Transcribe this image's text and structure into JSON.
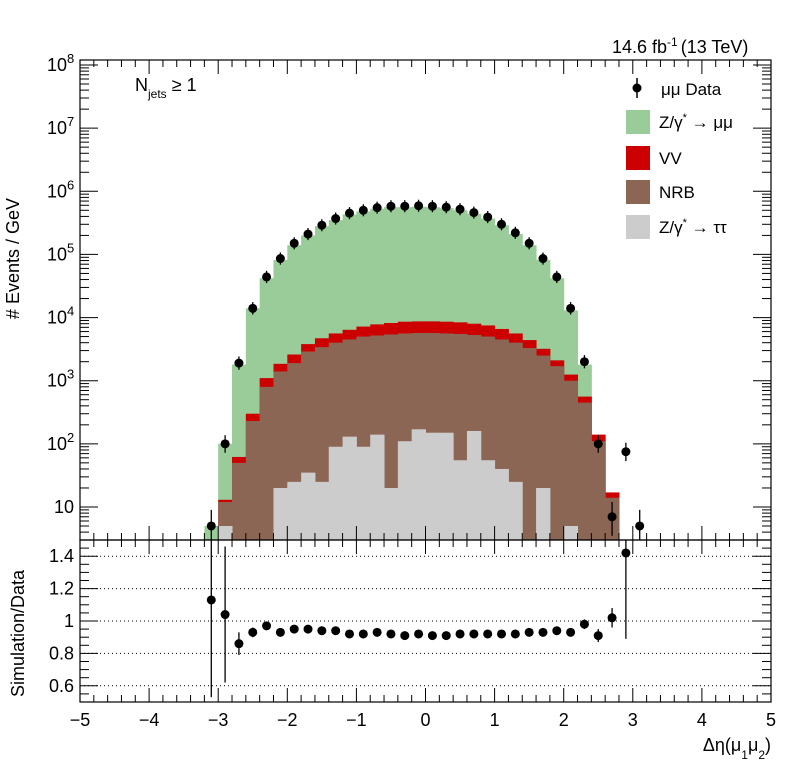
{
  "header": {
    "lumi_value": "14.6 fb",
    "lumi_exp": "-1",
    "lumi_energy": "(13 TeV)",
    "selection_main": "N",
    "selection_sub": "jets",
    "selection_rest": " ≥ 1"
  },
  "legend": {
    "data": "μμ Data",
    "zmm_a": "Z/γ",
    "zmm_star": "*",
    "zmm_b": " → μμ",
    "vv": "VV",
    "nrb": "NRB",
    "ztt_a": "Z/γ",
    "ztt_star": "*",
    "ztt_b": " → ττ"
  },
  "axes": {
    "ylabel_main": "# Events / GeV",
    "ylabel_ratio": "Simulation/Data",
    "xlabel_main": "Δη(μ",
    "xlabel_sub1": "1",
    "xlabel_mid": "μ",
    "xlabel_sub2": "2",
    "xlabel_end": ")"
  },
  "chart_data": [
    {
      "type": "bar",
      "title": "",
      "xlabel": "Δη(μ1μ2)",
      "ylabel": "# Events / GeV",
      "xlim": [
        -5,
        5
      ],
      "ylim": [
        3,
        120000000
      ],
      "yscale": "log",
      "stacked": true,
      "x_edges_step": 0.2,
      "x_first_edge": -3.2,
      "y_tick_labels": [
        "10",
        "10^2",
        "10^3",
        "10^4",
        "10^5",
        "10^6",
        "10^7",
        "10^8"
      ],
      "x_tick_labels": [
        "−5",
        "−4",
        "−3",
        "−2",
        "−1",
        "0",
        "1",
        "2",
        "3",
        "4",
        "5"
      ],
      "colors": {
        "zmm": "#99cc99",
        "vv": "#cc0000",
        "nrb": "#8c6654",
        "ztt": "#cccccc",
        "data": "#000000"
      },
      "stack_tops": {
        "ztt": [
          1,
          5,
          1,
          1,
          1,
          20,
          25,
          35,
          25,
          90,
          130,
          90,
          140,
          20,
          110,
          170,
          150,
          150,
          55,
          160,
          55,
          40,
          25,
          1,
          20,
          1,
          5,
          1,
          1,
          1,
          1,
          1
        ],
        "nrb": [
          1,
          12,
          50,
          230,
          800,
          1400,
          1900,
          2900,
          3400,
          4000,
          4500,
          5000,
          5200,
          5400,
          5600,
          5700,
          5700,
          5600,
          5500,
          5300,
          5000,
          4500,
          4000,
          3300,
          2500,
          1700,
          1000,
          450,
          110,
          14,
          1,
          1
        ],
        "vv": [
          1,
          13,
          62,
          300,
          1100,
          1850,
          2600,
          3800,
          4700,
          5600,
          6400,
          7200,
          7800,
          8200,
          8600,
          8700,
          8700,
          8600,
          8400,
          8000,
          7500,
          6600,
          5600,
          4400,
          3200,
          2100,
          1250,
          560,
          140,
          17,
          1,
          1
        ],
        "zmm": [
          5,
          100,
          1800,
          14000,
          42000,
          82000,
          140000,
          200000,
          280000,
          350000,
          430000,
          480000,
          530000,
          560000,
          560000,
          570000,
          560000,
          540000,
          500000,
          440000,
          370000,
          290000,
          210000,
          140000,
          82000,
          42000,
          13000,
          1800,
          100,
          5,
          1,
          1
        ]
      },
      "data_points": {
        "x": [
          -3.1,
          -2.9,
          -2.7,
          -2.5,
          -2.3,
          -2.1,
          -1.9,
          -1.7,
          -1.5,
          -1.3,
          -1.1,
          -0.9,
          -0.7,
          -0.5,
          -0.3,
          -0.1,
          0.1,
          0.3,
          0.5,
          0.7,
          0.9,
          1.1,
          1.3,
          1.5,
          1.7,
          1.9,
          2.1,
          2.3,
          2.5,
          2.7,
          2.9,
          3.1
        ],
        "y": [
          5,
          100,
          1900,
          14000,
          44000,
          86000,
          150000,
          210000,
          290000,
          370000,
          450000,
          500000,
          550000,
          580000,
          580000,
          590000,
          580000,
          560000,
          520000,
          460000,
          390000,
          300000,
          220000,
          150000,
          86000,
          44000,
          14000,
          2000,
          100,
          7,
          75,
          5
        ]
      }
    },
    {
      "type": "scatter",
      "title": "",
      "xlabel": "Δη(μ1μ2)",
      "ylabel": "Simulation/Data",
      "xlim": [
        -5,
        5
      ],
      "ylim": [
        0.5,
        1.5
      ],
      "y_tick_labels": [
        "0.6",
        "0.8",
        "1",
        "1.2",
        "1.4"
      ],
      "gridlines_y": [
        0.6,
        0.8,
        1.0,
        1.2,
        1.4
      ],
      "x": [
        -3.1,
        -2.9,
        -2.7,
        -2.5,
        -2.3,
        -2.1,
        -1.9,
        -1.7,
        -1.5,
        -1.3,
        -1.1,
        -0.9,
        -0.7,
        -0.5,
        -0.3,
        -0.1,
        0.1,
        0.3,
        0.5,
        0.7,
        0.9,
        1.1,
        1.3,
        1.5,
        1.7,
        1.9,
        2.1,
        2.3,
        2.5,
        2.7,
        2.9
      ],
      "y": [
        1.13,
        1.04,
        0.86,
        0.93,
        0.97,
        0.93,
        0.95,
        0.95,
        0.94,
        0.94,
        0.92,
        0.92,
        0.93,
        0.92,
        0.91,
        0.92,
        0.91,
        0.91,
        0.92,
        0.92,
        0.92,
        0.92,
        0.92,
        0.93,
        0.93,
        0.94,
        0.93,
        0.98,
        0.91,
        1.02,
        1.42
      ],
      "yerr": [
        0.6,
        0.42,
        0.07,
        0.03,
        0.02,
        0.015,
        0.01,
        0.01,
        0.01,
        0.01,
        0.01,
        0.01,
        0.01,
        0.01,
        0.01,
        0.01,
        0.01,
        0.01,
        0.01,
        0.01,
        0.01,
        0.01,
        0.01,
        0.01,
        0.01,
        0.015,
        0.02,
        0.03,
        0.04,
        0.06,
        0.53
      ]
    }
  ]
}
